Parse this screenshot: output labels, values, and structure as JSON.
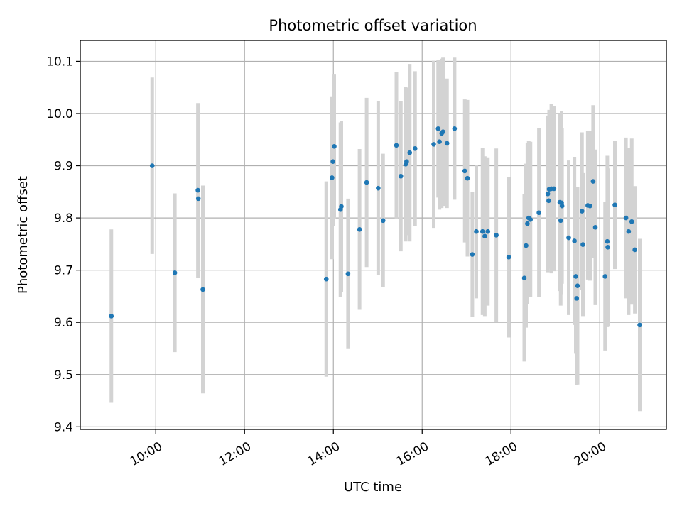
{
  "chart_data": {
    "type": "scatter",
    "title": "Photometric offset variation",
    "xlabel": "UTC time",
    "ylabel": "Photometric offset",
    "xlim": [
      8.3,
      21.5
    ],
    "ylim": [
      9.395,
      10.14
    ],
    "grid": true,
    "x_ticks": [
      {
        "value": 10,
        "label": "10:00"
      },
      {
        "value": 12,
        "label": "12:00"
      },
      {
        "value": 14,
        "label": "14:00"
      },
      {
        "value": 16,
        "label": "16:00"
      },
      {
        "value": 18,
        "label": "18:00"
      },
      {
        "value": 20,
        "label": "20:00"
      }
    ],
    "y_ticks": [
      {
        "value": 9.4,
        "label": "9.4"
      },
      {
        "value": 9.5,
        "label": "9.5"
      },
      {
        "value": 9.6,
        "label": "9.6"
      },
      {
        "value": 9.7,
        "label": "9.7"
      },
      {
        "value": 9.8,
        "label": "9.8"
      },
      {
        "value": 9.9,
        "label": "9.9"
      },
      {
        "value": 10.0,
        "label": "10.0"
      },
      {
        "value": 10.1,
        "label": "10.1"
      }
    ],
    "colors": {
      "point": "#1f77b4",
      "errorbar": "#d3d3d3",
      "grid": "#b0b0b0",
      "axis": "#000000"
    },
    "series": [
      {
        "name": "offset",
        "x": [
          9.0,
          9.92,
          10.43,
          10.95,
          10.96,
          11.06,
          13.84,
          13.97,
          13.99,
          14.02,
          14.16,
          14.18,
          14.33,
          14.59,
          14.75,
          15.01,
          15.12,
          15.42,
          15.52,
          15.63,
          15.65,
          15.72,
          15.84,
          16.26,
          16.36,
          16.39,
          16.44,
          16.47,
          16.56,
          16.73,
          16.96,
          17.02,
          17.13,
          17.22,
          17.36,
          17.41,
          17.48,
          17.67,
          17.95,
          18.3,
          18.34,
          18.37,
          18.4,
          18.44,
          18.63,
          18.83,
          18.85,
          18.86,
          18.91,
          18.97,
          19.1,
          19.12,
          19.14,
          19.15,
          19.3,
          19.43,
          19.46,
          19.48,
          19.5,
          19.6,
          19.62,
          19.73,
          19.78,
          19.85,
          19.9,
          20.12,
          20.17,
          20.18,
          20.34,
          20.59,
          20.65,
          20.72,
          20.79,
          20.9
        ],
        "y": [
          9.612,
          9.9,
          9.695,
          9.853,
          9.837,
          9.663,
          9.683,
          9.877,
          9.908,
          9.937,
          9.816,
          9.822,
          9.693,
          9.778,
          9.868,
          9.857,
          9.795,
          9.939,
          9.88,
          9.903,
          9.908,
          9.925,
          9.933,
          9.941,
          9.971,
          9.946,
          9.962,
          9.965,
          9.943,
          9.971,
          9.89,
          9.876,
          9.73,
          9.774,
          9.774,
          9.765,
          9.774,
          9.767,
          9.725,
          9.685,
          9.747,
          9.789,
          9.8,
          9.797,
          9.81,
          9.846,
          9.833,
          9.855,
          9.856,
          9.856,
          9.83,
          9.795,
          9.829,
          9.823,
          9.762,
          9.756,
          9.688,
          9.646,
          9.67,
          9.813,
          9.749,
          9.824,
          9.823,
          9.87,
          9.782,
          9.688,
          9.755,
          9.744,
          9.825,
          9.8,
          9.774,
          9.793,
          9.739,
          9.595
        ],
        "yerr": [
          0.166,
          0.169,
          0.152,
          0.167,
          0.148,
          0.199,
          0.187,
          0.156,
          0.124,
          0.139,
          0.167,
          0.164,
          0.144,
          0.154,
          0.162,
          0.167,
          0.128,
          0.141,
          0.144,
          0.148,
          0.141,
          0.17,
          0.148,
          0.16,
          0.132,
          0.13,
          0.143,
          0.142,
          0.124,
          0.136,
          0.137,
          0.15,
          0.12,
          0.128,
          0.16,
          0.153,
          0.142,
          0.166,
          0.154,
          0.16,
          0.157,
          0.154,
          0.148,
          0.149,
          0.162,
          0.15,
          0.127,
          0.152,
          0.162,
          0.158,
          0.17,
          0.163,
          0.175,
          0.149,
          0.148,
          0.161,
          0.148,
          0.166,
          0.189,
          0.151,
          0.137,
          0.142,
          0.143,
          0.146,
          0.149,
          0.142,
          0.164,
          0.151,
          0.123,
          0.154,
          0.16,
          0.159,
          0.122,
          0.165
        ]
      }
    ]
  }
}
